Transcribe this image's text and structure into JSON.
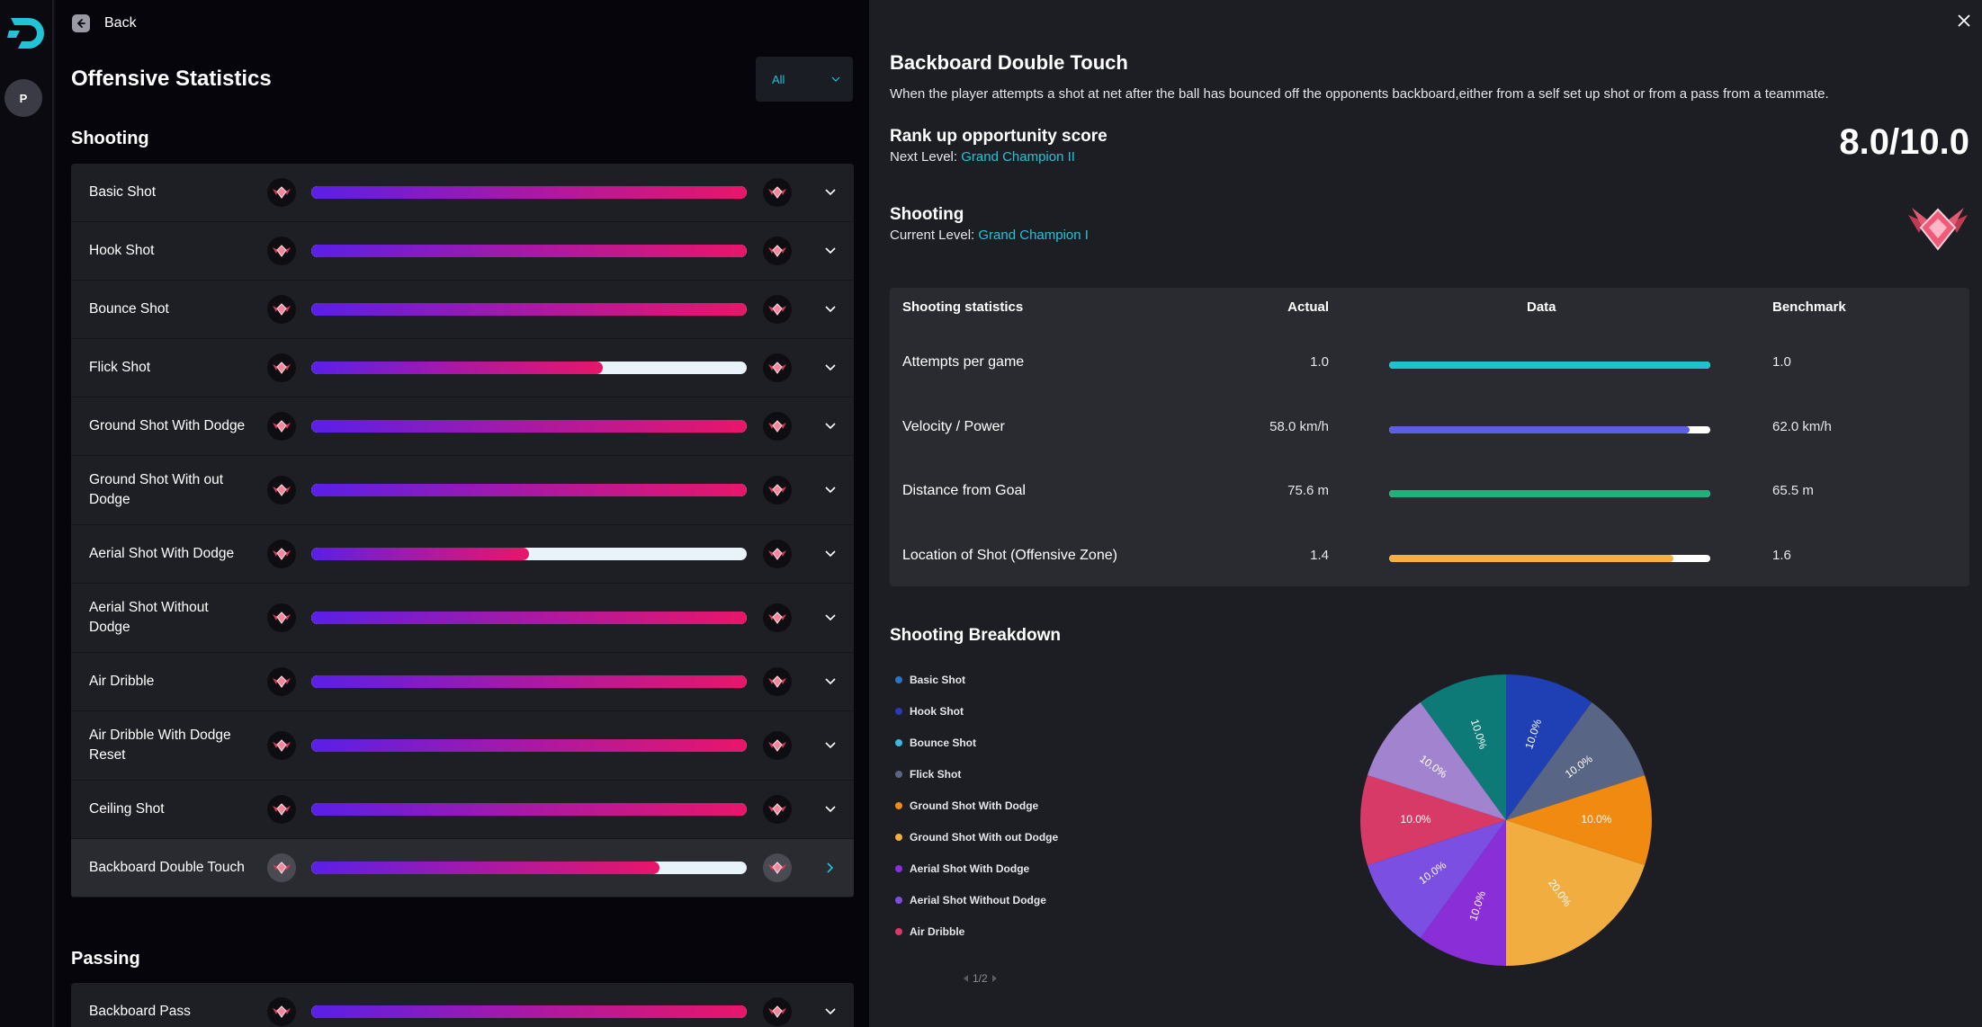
{
  "nav": {
    "back_label": "Back",
    "avatar_initial": "P",
    "brand_color": "#21c4d6"
  },
  "left": {
    "title": "Offensive Statistics",
    "filter": {
      "selected": "All"
    },
    "sections": [
      {
        "title": "Shooting",
        "items": [
          {
            "label": "Basic Shot",
            "progress": 1.0
          },
          {
            "label": "Hook Shot",
            "progress": 1.0
          },
          {
            "label": "Bounce Shot",
            "progress": 1.0
          },
          {
            "label": "Flick Shot",
            "progress": 0.67
          },
          {
            "label": "Ground Shot With Dodge",
            "progress": 1.0
          },
          {
            "label": "Ground Shot With out Dodge",
            "progress": 1.0
          },
          {
            "label": "Aerial Shot With Dodge",
            "progress": 0.5
          },
          {
            "label": "Aerial Shot Without Dodge",
            "progress": 1.0
          },
          {
            "label": "Air Dribble",
            "progress": 1.0
          },
          {
            "label": "Air Dribble With Dodge Reset",
            "progress": 1.0
          },
          {
            "label": "Ceiling Shot",
            "progress": 1.0
          },
          {
            "label": "Backboard Double Touch",
            "progress": 0.8,
            "selected": true
          }
        ]
      },
      {
        "title": "Passing",
        "items": [
          {
            "label": "Backboard Pass",
            "progress": 1.0
          }
        ]
      }
    ]
  },
  "detail": {
    "title": "Backboard Double Touch",
    "description": "When the player attempts a shot at net after the ball has bounced off the opponents backboard,either from a self set up shot or from a pass from a teammate.",
    "rank_title": "Rank up opportunity score",
    "next_level_label": "Next Level: ",
    "next_level": "Grand Champion II",
    "score": "8.0/10.0",
    "category_title": "Shooting",
    "current_level_label": "Current Level: ",
    "current_level": "Grand Champion I",
    "stats": {
      "headers": {
        "name": "Shooting statistics",
        "actual": "Actual",
        "data": "Data",
        "benchmark": "Benchmark"
      },
      "rows": [
        {
          "name": "Attempts per game",
          "actual": "1.0",
          "benchmark": "1.0",
          "ratio": 1.0,
          "color": "#1fc1d0"
        },
        {
          "name": "Velocity / Power",
          "actual": "58.0 km/h",
          "benchmark": "62.0 km/h",
          "ratio": 0.935,
          "color": "#5b5fe0"
        },
        {
          "name": "Distance from Goal",
          "actual": "75.6 m",
          "benchmark": "65.5 m",
          "ratio": 1.0,
          "color": "#22b07a"
        },
        {
          "name": "Location of Shot (Offensive Zone)",
          "actual": "1.4",
          "benchmark": "1.6",
          "ratio": 0.885,
          "color": "#f5b043"
        }
      ]
    },
    "breakdown_title": "Shooting Breakdown",
    "pager": "1/2"
  },
  "chart_data": {
    "type": "pie",
    "legend_position": "left",
    "legend": [
      {
        "name": "Basic Shot",
        "color": "#2a74c4"
      },
      {
        "name": "Hook Shot",
        "color": "#2a3ab0"
      },
      {
        "name": "Bounce Shot",
        "color": "#3cb8e0"
      },
      {
        "name": "Flick Shot",
        "color": "#586585"
      },
      {
        "name": "Ground Shot With Dodge",
        "color": "#f08a10"
      },
      {
        "name": "Ground Shot With out Dodge",
        "color": "#f1ad40"
      },
      {
        "name": "Aerial Shot With Dodge",
        "color": "#8a2fd8"
      },
      {
        "name": "Aerial Shot Without Dodge",
        "color": "#7a4fe2"
      },
      {
        "name": "Air Dribble",
        "color": "#d83a68"
      }
    ],
    "slices": [
      {
        "value": 10.0,
        "label": "10.0%",
        "color": "#1f3fb5"
      },
      {
        "value": 10.0,
        "label": "10.0%",
        "color": "#586585"
      },
      {
        "value": 10.0,
        "label": "10.0%",
        "color": "#f08a10"
      },
      {
        "value": 20.0,
        "label": "20.0%",
        "color": "#f1ad40"
      },
      {
        "value": 10.0,
        "label": "10.0%",
        "color": "#8a2fd8"
      },
      {
        "value": 10.0,
        "label": "10.0%",
        "color": "#7a4fe2"
      },
      {
        "value": 10.0,
        "label": "10.0%",
        "color": "#d83a68"
      },
      {
        "value": 10.0,
        "label": "10.0%",
        "color": "#a283d0"
      },
      {
        "value": 10.0,
        "label": "10.0%",
        "color": "#0e7a78"
      }
    ]
  }
}
